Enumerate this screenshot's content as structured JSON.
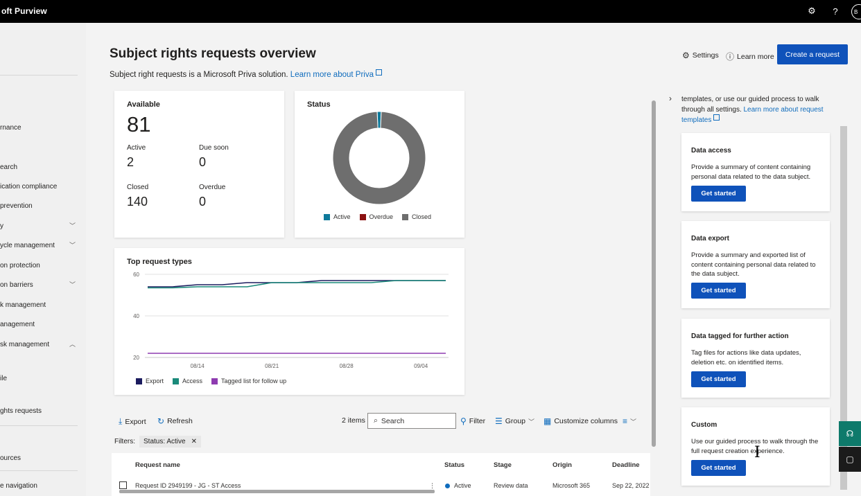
{
  "topbar": {
    "app_title": "oft Purview",
    "settings_icon": "gear-icon",
    "help_icon": "question-icon",
    "avatar_initials": "B"
  },
  "leftnav": {
    "items": [
      {
        "label": "rnance"
      },
      {
        "label": "earch"
      },
      {
        "label": "ication compliance"
      },
      {
        "label": "prevention"
      },
      {
        "label": "y"
      },
      {
        "label": "ycle management"
      },
      {
        "label": "on protection"
      },
      {
        "label": "on barriers"
      },
      {
        "label": "k management"
      },
      {
        "label": "anagement"
      },
      {
        "label": "sk management"
      },
      {
        "label": "ile"
      },
      {
        "label": "ghts requests"
      },
      {
        "label": "ources"
      },
      {
        "label": "e navigation"
      }
    ]
  },
  "header": {
    "title": "Subject rights requests overview",
    "subtitle": "Subject right requests is a Microsoft Priva solution.",
    "subtitle_link": "Learn more about Priva",
    "settings_label": "Settings",
    "learn_more_label": "Learn more",
    "create_label": "Create a request"
  },
  "summary": {
    "available_label": "Available",
    "available_value": "81",
    "active_label": "Active",
    "active_value": "2",
    "due_soon_label": "Due soon",
    "due_soon_value": "0",
    "closed_label": "Closed",
    "closed_value": "140",
    "overdue_label": "Overdue",
    "overdue_value": "0"
  },
  "status_card": {
    "title": "Status",
    "legend": [
      "Active",
      "Overdue",
      "Closed"
    ],
    "colors": {
      "active": "#0e7a9b",
      "overdue": "#8b1010",
      "closed": "#6e6e6e"
    }
  },
  "chart_data": [
    {
      "type": "pie",
      "title": "Status",
      "categories": [
        "Active",
        "Overdue",
        "Closed"
      ],
      "values": [
        2,
        0,
        140
      ]
    },
    {
      "type": "line",
      "title": "Top request types",
      "x": [
        "08/09",
        "08/12",
        "08/14",
        "08/16",
        "08/18",
        "08/21",
        "08/24",
        "08/26",
        "08/28",
        "08/31",
        "09/02",
        "09/04",
        "09/07"
      ],
      "xticks": [
        "08/14",
        "08/21",
        "08/28",
        "09/04"
      ],
      "yticks": [
        20,
        40,
        60
      ],
      "ylim": [
        20,
        60
      ],
      "series": [
        {
          "name": "Export",
          "color": "#1b1b5e",
          "values": [
            54,
            54,
            55,
            55,
            56,
            56,
            56,
            57,
            57,
            57,
            57,
            57,
            57
          ]
        },
        {
          "name": "Access",
          "color": "#1a8a7a",
          "values": [
            53.5,
            53.5,
            54,
            54,
            54,
            56,
            56,
            56,
            56,
            56,
            57,
            57,
            57
          ]
        },
        {
          "name": "Tagged list for follow up",
          "color": "#8e3bb0",
          "values": [
            22,
            22,
            22,
            22,
            22,
            22,
            22,
            22,
            22,
            22,
            22,
            22,
            22
          ]
        }
      ]
    }
  ],
  "toolbar": {
    "export_label": "Export",
    "refresh_label": "Refresh",
    "items_count": "2 items",
    "search_placeholder": "Search",
    "filter_label": "Filter",
    "group_label": "Group",
    "customize_label": "Customize columns",
    "filters_label": "Filters:",
    "filter_chip": "Status: Active"
  },
  "table": {
    "headers": [
      "Request name",
      "Status",
      "Stage",
      "Origin",
      "Deadline"
    ],
    "rows": [
      {
        "name": "Request ID 2949199 - JG - ST Access",
        "status": "Active",
        "stage": "Review data",
        "origin": "Microsoft 365",
        "deadline": "Sep 22, 2022 7"
      }
    ]
  },
  "panel": {
    "intro_text": "templates, or use our guided process to walk through all settings.",
    "intro_link": "Learn more about request templates",
    "templates": [
      {
        "title": "Data access",
        "desc": "Provide a summary of content containing personal data related to the data subject.",
        "button": "Get started"
      },
      {
        "title": "Data export",
        "desc": "Provide a summary and exported list of content containing personal data related to the data subject.",
        "button": "Get started"
      },
      {
        "title": "Data tagged for further action",
        "desc": "Tag files for actions like data updates, deletion etc. on identified items.",
        "button": "Get started"
      },
      {
        "title": "Custom",
        "desc": "Use our guided process to walk through the full request creation experience.",
        "button": "Get started"
      }
    ]
  }
}
